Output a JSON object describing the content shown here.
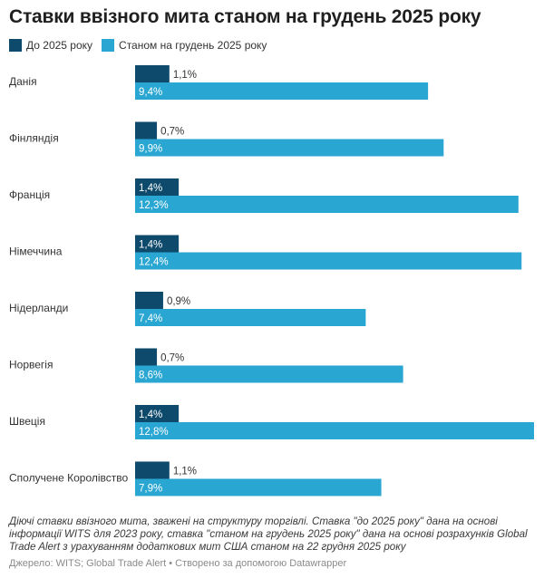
{
  "title": "Ставки ввізного мита станом на грудень 2025 року",
  "legend": [
    {
      "label": "До 2025 року",
      "color": "#0d4a6b"
    },
    {
      "label": "Станом на грудень 2025 року",
      "color": "#2aa6d2"
    }
  ],
  "chart_data": {
    "type": "bar",
    "orientation": "horizontal",
    "categories": [
      "Данія",
      "Фінляндія",
      "Франція",
      "Німеччина",
      "Нідерланди",
      "Норвегія",
      "Швеція",
      "Сполучене Королівство"
    ],
    "series": [
      {
        "name": "До 2025 року",
        "color": "#0d4a6b",
        "values": [
          1.1,
          0.7,
          1.4,
          1.4,
          0.9,
          0.7,
          1.4,
          1.1
        ],
        "labels": [
          "1,1%",
          "0,7%",
          "1,4%",
          "1,4%",
          "0,9%",
          "0,7%",
          "1,4%",
          "1,1%"
        ]
      },
      {
        "name": "Станом на грудень 2025 року",
        "color": "#2aa6d2",
        "values": [
          9.4,
          9.9,
          12.3,
          12.4,
          7.4,
          8.6,
          12.8,
          7.9
        ],
        "labels": [
          "9,4%",
          "9,9%",
          "12,3%",
          "12,4%",
          "7,4%",
          "8,6%",
          "12,8%",
          "7,9%"
        ]
      }
    ],
    "xlim": [
      0,
      12.8
    ],
    "grid": false
  },
  "notes": "Діючі ставки ввізного мита, зважені на структуру торгівлі. Ставка \"до 2025 року\" дана на основі інформації WITS для 2023 року, ставка \"станом на грудень 2025 року\" дана на основі розрахунків Global Trade Alert з урахуванням додаткових мит США станом на 22 грудня 2025 року",
  "source": "Джерело: WITS; Global Trade Alert • Створено за допомогою Datawrapper"
}
